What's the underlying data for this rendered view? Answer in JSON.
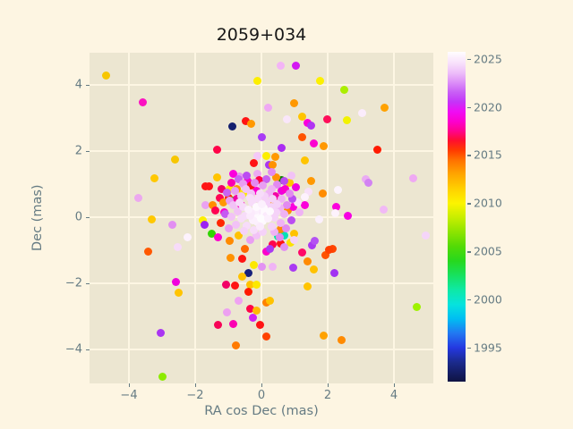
{
  "title": "2059+034",
  "colors": {
    "figure_bg": "#fdf5e2",
    "axes_bg": "#ece6d1",
    "grid": "#fdf6e3",
    "text": "#657b83",
    "title_text": "#181818",
    "tick_mark": "#657b83"
  },
  "chart_data": {
    "type": "scatter",
    "title": "2059+034",
    "xlabel": "RA cos Dec (mas)",
    "ylabel": "Dec (mas)",
    "xlim": [
      -5.19,
      5.19
    ],
    "ylim": [
      -5.03,
      4.97
    ],
    "grid": true,
    "x_ticks": [
      {
        "value": -4,
        "label": "−4"
      },
      {
        "value": -2,
        "label": "−2"
      },
      {
        "value": 0,
        "label": "0"
      },
      {
        "value": 2,
        "label": "2"
      },
      {
        "value": 4,
        "label": "4"
      }
    ],
    "y_ticks": [
      {
        "value": 4,
        "label": "4"
      },
      {
        "value": 2,
        "label": "2"
      },
      {
        "value": 0,
        "label": "0"
      },
      {
        "value": -2,
        "label": "−2"
      },
      {
        "value": -4,
        "label": "−4"
      }
    ],
    "colorbar": {
      "label": "",
      "vmin": 1991.5,
      "vmax": 2025.7,
      "ticks": [
        {
          "value": 2025,
          "label": "2025"
        },
        {
          "value": 2020,
          "label": "2020"
        },
        {
          "value": 2015,
          "label": "2015"
        },
        {
          "value": 2010,
          "label": "2010"
        },
        {
          "value": 2005,
          "label": "2005"
        },
        {
          "value": 2000,
          "label": "2000"
        },
        {
          "value": 1995,
          "label": "1995"
        }
      ],
      "gradient_stops": [
        {
          "v": 1991.5,
          "c": "#0f1342"
        },
        {
          "v": 1993.5,
          "c": "#1b2a8c"
        },
        {
          "v": 1995.0,
          "c": "#2438e0"
        },
        {
          "v": 1996.5,
          "c": "#2277f2"
        },
        {
          "v": 1998.0,
          "c": "#00bdf2"
        },
        {
          "v": 1999.5,
          "c": "#06e3de"
        },
        {
          "v": 2001.0,
          "c": "#0ee9a6"
        },
        {
          "v": 2002.5,
          "c": "#17e160"
        },
        {
          "v": 2004.0,
          "c": "#26d81e"
        },
        {
          "v": 2005.5,
          "c": "#52da06"
        },
        {
          "v": 2007.0,
          "c": "#8ce400"
        },
        {
          "v": 2008.5,
          "c": "#c6ee00"
        },
        {
          "v": 2010.0,
          "c": "#fcf400"
        },
        {
          "v": 2011.5,
          "c": "#ffd000"
        },
        {
          "v": 2013.0,
          "c": "#ffa600"
        },
        {
          "v": 2014.5,
          "c": "#ff7000"
        },
        {
          "v": 2015.5,
          "c": "#ff3a00"
        },
        {
          "v": 2016.5,
          "c": "#ff0f2e"
        },
        {
          "v": 2017.5,
          "c": "#ff038e"
        },
        {
          "v": 2018.5,
          "c": "#fc00cf"
        },
        {
          "v": 2019.5,
          "c": "#ef0cf4"
        },
        {
          "v": 2020.5,
          "c": "#c434f8"
        },
        {
          "v": 2021.5,
          "c": "#c85ef6"
        },
        {
          "v": 2022.5,
          "c": "#dc8ef8"
        },
        {
          "v": 2023.5,
          "c": "#edbdf9"
        },
        {
          "v": 2024.5,
          "c": "#f8e0fb"
        },
        {
          "v": 2025.7,
          "c": "#fffdfe"
        }
      ]
    },
    "points": [
      [
        -4.68,
        4.27,
        "#f7c600"
      ],
      [
        -3.59,
        3.46,
        "#fb12c1"
      ],
      [
        -2.62,
        1.73,
        "#f7c600"
      ],
      [
        0.57,
        4.59,
        "#f3b4f6"
      ],
      [
        1.03,
        4.59,
        "#d319f2"
      ],
      [
        -0.11,
        4.11,
        "#fcee00"
      ],
      [
        0.19,
        3.32,
        "#efa9f3"
      ],
      [
        1.0,
        3.43,
        "#ff9800"
      ],
      [
        -0.89,
        2.73,
        "#131f6e"
      ],
      [
        -0.46,
        2.89,
        "#ff1414"
      ],
      [
        -0.3,
        2.81,
        "#ff9800"
      ],
      [
        1.22,
        3.05,
        "#ffc400"
      ],
      [
        0.76,
        2.95,
        "#f9e6fa"
      ],
      [
        1.38,
        2.84,
        "#fb00dd"
      ],
      [
        1.49,
        2.76,
        "#b134f2"
      ],
      [
        0.0,
        2.41,
        "#a93cf5"
      ],
      [
        1.24,
        2.41,
        "#ff5400"
      ],
      [
        1.57,
        2.22,
        "#fb00d0"
      ],
      [
        -1.35,
        2.05,
        "#ff0448"
      ],
      [
        0.62,
        2.08,
        "#ab2cf2"
      ],
      [
        -0.11,
        1.84,
        "#f4c9f7"
      ],
      [
        0.14,
        1.86,
        "#fcee00"
      ],
      [
        0.41,
        1.81,
        "#ff9800"
      ],
      [
        1.3,
        1.7,
        "#ffc400"
      ],
      [
        1.78,
        4.11,
        "#fcf000"
      ],
      [
        2.49,
        3.86,
        "#abee00"
      ],
      [
        3.73,
        3.32,
        "#ffa200"
      ],
      [
        3.03,
        3.14,
        "#fbecfc"
      ],
      [
        2.0,
        2.95,
        "#ff0f5a"
      ],
      [
        2.59,
        2.92,
        "#f2f200"
      ],
      [
        1.89,
        2.14,
        "#ff9800"
      ],
      [
        3.49,
        2.03,
        "#ff1a00"
      ],
      [
        -3.22,
        1.16,
        "#ffc800"
      ],
      [
        -3.73,
        0.59,
        "#eca8ef"
      ],
      [
        -1.7,
        0.92,
        "#ff1414"
      ],
      [
        -1.68,
        0.35,
        "#eaa2f1"
      ],
      [
        -3.3,
        -0.08,
        "#ffc800"
      ],
      [
        -2.7,
        -0.22,
        "#e28ef2"
      ],
      [
        -1.76,
        -0.11,
        "#fcee00"
      ],
      [
        -1.73,
        -0.24,
        "#9c22f2"
      ],
      [
        -2.24,
        -0.62,
        "#fdf2fd"
      ],
      [
        -3.41,
        -1.03,
        "#ff5800"
      ],
      [
        -2.54,
        -0.92,
        "#f7dbf9"
      ],
      [
        -2.57,
        -1.95,
        "#f000dd"
      ],
      [
        -2.51,
        -2.3,
        "#ffc400"
      ],
      [
        -3.05,
        -3.49,
        "#aa35f2"
      ],
      [
        -3.0,
        -4.84,
        "#8deb00"
      ],
      [
        3.16,
        1.14,
        "#eaabf3"
      ],
      [
        3.24,
        1.03,
        "#d282f2"
      ],
      [
        4.59,
        1.16,
        "#efa9f3"
      ],
      [
        2.32,
        0.81,
        "#fdf4fd"
      ],
      [
        1.84,
        0.7,
        "#ff8c00"
      ],
      [
        2.27,
        0.32,
        "#fb00dd"
      ],
      [
        2.24,
        0.11,
        "#fdf2fc"
      ],
      [
        2.62,
        0.05,
        "#f600e2"
      ],
      [
        3.68,
        0.24,
        "#f1b9f6"
      ],
      [
        4.95,
        -0.57,
        "#f5d5f9"
      ],
      [
        2.16,
        -0.97,
        "#ff4600"
      ],
      [
        1.92,
        -1.14,
        "#ff5200"
      ],
      [
        2.19,
        -1.68,
        "#a232f2"
      ],
      [
        4.7,
        -2.73,
        "#9ff200"
      ],
      [
        1.89,
        -3.59,
        "#ffa200"
      ],
      [
        2.41,
        -3.73,
        "#ff8a00"
      ],
      [
        0.7,
        -0.57,
        "#06dfb6"
      ],
      [
        -1.08,
        -2.05,
        "#f20066"
      ],
      [
        -0.81,
        -2.08,
        "#ff1414"
      ],
      [
        -0.35,
        -2.03,
        "#ffc200"
      ],
      [
        -0.38,
        -2.27,
        "#ff1a00"
      ],
      [
        -0.14,
        -2.03,
        "#fce800"
      ],
      [
        1.38,
        -2.11,
        "#ffc400"
      ],
      [
        -0.7,
        -2.54,
        "#efa2f2"
      ],
      [
        0.14,
        -2.59,
        "#ff8200"
      ],
      [
        0.27,
        -2.54,
        "#ffc200"
      ],
      [
        -0.35,
        -2.78,
        "#ff0448"
      ],
      [
        -0.14,
        -2.84,
        "#ffba00"
      ],
      [
        -1.05,
        -2.89,
        "#eda0f1"
      ],
      [
        -0.27,
        -3.05,
        "#d122f2"
      ],
      [
        -1.32,
        -3.27,
        "#f70457"
      ],
      [
        -0.84,
        -3.24,
        "#fb00b2"
      ],
      [
        -0.05,
        -3.27,
        "#ff1414"
      ],
      [
        0.16,
        -3.62,
        "#ff4200"
      ],
      [
        -0.78,
        -3.89,
        "#ff7a00"
      ],
      [
        1.54,
        -0.86,
        "#aa3af2"
      ],
      [
        2.03,
        -1.0,
        "#ff3e00"
      ],
      [
        1.22,
        -1.08,
        "#ff0868"
      ],
      [
        0.97,
        -1.54,
        "#aa3af2"
      ],
      [
        1.38,
        -1.35,
        "#ff8a00"
      ],
      [
        1.57,
        -1.59,
        "#ffc200"
      ],
      [
        -0.24,
        1.62,
        "#ff1414"
      ],
      [
        0.22,
        1.59,
        "#aa35f2"
      ],
      [
        0.35,
        1.57,
        "#ff9200"
      ],
      [
        -0.65,
        1.22,
        "#e595f2"
      ],
      [
        -0.41,
        1.08,
        "#fb00cc"
      ],
      [
        -0.11,
        1.3,
        "#ecaaf3"
      ],
      [
        -0.95,
        0.84,
        "#fce800"
      ],
      [
        -0.73,
        0.84,
        "#ff9800"
      ],
      [
        -1.0,
        0.57,
        "#ff2600"
      ],
      [
        -0.86,
        0.49,
        "#35d313"
      ],
      [
        -1.27,
        0.57,
        "#ff0452"
      ],
      [
        -1.46,
        0.35,
        "#ff8e00"
      ],
      [
        -0.38,
        0.81,
        "#f2c3f6"
      ],
      [
        -0.19,
        0.97,
        "#f4cbf7"
      ],
      [
        -1.59,
        0.92,
        "#ff1414"
      ],
      [
        -1.49,
        -0.49,
        "#31d400"
      ],
      [
        0.49,
        -0.59,
        "#06e9a4"
      ],
      [
        0.62,
        1.11,
        "#0c8004"
      ],
      [
        1.51,
        1.08,
        "#ff9800"
      ],
      [
        0.57,
        -0.38,
        "#ff8a00"
      ],
      [
        1.0,
        -0.49,
        "#ffc200"
      ],
      [
        0.89,
        -0.78,
        "#fce200"
      ],
      [
        0.59,
        -0.81,
        "#ff1414"
      ],
      [
        0.35,
        -0.84,
        "#ff044c"
      ],
      [
        0.16,
        -1.05,
        "#fb00cc"
      ],
      [
        -0.38,
        -1.68,
        "#16217c"
      ],
      [
        1.43,
        0.76,
        "#f8e0f9"
      ],
      [
        1.73,
        -0.08,
        "#fbf0fc"
      ],
      [
        1.62,
        -0.73,
        "#b452f2"
      ],
      [
        1.32,
        0.35,
        "#fb00da"
      ],
      [
        -1.11,
        0.14,
        "#fb00cc"
      ],
      [
        -1.22,
        -0.19,
        "#ff2600"
      ],
      [
        -0.97,
        -0.73,
        "#ff8a00"
      ],
      [
        -0.92,
        -1.22,
        "#ff9200"
      ],
      [
        -0.59,
        -1.27,
        "#ff1414"
      ],
      [
        -0.24,
        -1.46,
        "#fce800"
      ],
      [
        0.0,
        -1.51,
        "#e292f2"
      ],
      [
        0.35,
        -1.49,
        "#f0b4f5"
      ],
      [
        -0.59,
        -1.81,
        "#ffc200"
      ],
      [
        -0.55,
        0.7,
        "#fce800"
      ],
      [
        0.3,
        0.42,
        "#ff9800"
      ],
      [
        -0.7,
        -0.55,
        "#ffc200"
      ],
      [
        0.8,
        0.2,
        "#ff8a00"
      ],
      [
        -0.32,
        0.95,
        "#ff1414"
      ],
      [
        0.95,
        0.3,
        "#fb00dd"
      ],
      [
        -1.15,
        0.45,
        "#ff9800"
      ],
      [
        0.85,
        1.05,
        "#ffc400"
      ],
      [
        -0.08,
        1.12,
        "#ff0448"
      ],
      [
        0.45,
        1.2,
        "#ff9200"
      ],
      [
        -1.2,
        0.85,
        "#f20066"
      ],
      [
        1.1,
        0.45,
        "#f8e0f9"
      ],
      [
        1.15,
        0.15,
        "#efb2f4"
      ],
      [
        -1.3,
        -0.6,
        "#fb00cc"
      ],
      [
        0.25,
        -0.95,
        "#aa3af2"
      ],
      [
        -0.5,
        -0.95,
        "#ff6a00"
      ],
      [
        0.7,
        -0.9,
        "#e292f2"
      ],
      [
        1.0,
        -0.7,
        "#f5d2f8"
      ],
      [
        -1.35,
        1.2,
        "#ffc400"
      ],
      [
        0.3,
        1.35,
        "#e28af0"
      ],
      [
        -0.85,
        1.3,
        "#fb00dd"
      ],
      [
        0.9,
        1.25,
        "#f2c2f6"
      ],
      [
        1.3,
        0.6,
        "#fdf2fd"
      ],
      [
        -1.4,
        0.2,
        "#ff0452"
      ],
      [
        -0.6,
        0.35,
        "#fb00cc"
      ],
      [
        0.42,
        0.62,
        "#f200a6"
      ],
      [
        -0.15,
        0.8,
        "#fb00cc"
      ],
      [
        0.6,
        0.8,
        "#f000dd"
      ],
      [
        -0.75,
        0.55,
        "#f200a6"
      ],
      [
        0.72,
        0.85,
        "#fb00cc"
      ],
      [
        1.05,
        0.9,
        "#f000dd"
      ],
      [
        -0.9,
        1.05,
        "#fb00b2"
      ],
      [
        -1.05,
        0.75,
        "#c864f2"
      ],
      [
        0.92,
        0.55,
        "#bb4cf2"
      ],
      [
        -0.7,
        1.15,
        "#c864f2"
      ],
      [
        0.68,
        1.1,
        "#bb4cf2"
      ],
      [
        -1.1,
        0.1,
        "#c55af2"
      ],
      [
        0.9,
        -0.1,
        "#bb4cf2"
      ],
      [
        0.15,
        1.15,
        "#c864f2"
      ],
      [
        -0.45,
        1.25,
        "#bb4cf2"
      ],
      [
        -0.95,
        0.5,
        "#e99ef2"
      ],
      [
        0.78,
        0.35,
        "#e28af0"
      ],
      [
        -0.55,
        1.0,
        "#e99ef2"
      ],
      [
        0.48,
        0.98,
        "#e28af0"
      ],
      [
        -1.0,
        -0.35,
        "#e99ef2"
      ],
      [
        0.75,
        -0.35,
        "#e28af0"
      ],
      [
        -0.35,
        -0.7,
        "#e99ef2"
      ],
      [
        0.55,
        -0.6,
        "#e28af0"
      ],
      [
        -0.8,
        0.8,
        "#e99ef2"
      ],
      [
        0.85,
        0.72,
        "#e28af0"
      ],
      [
        0.05,
        0.95,
        "#e99ef2"
      ],
      [
        -0.2,
        1.05,
        "#e28af0"
      ],
      [
        -0.72,
        0.18,
        "#f2c2f6"
      ],
      [
        0.55,
        0.28,
        "#efb2f4"
      ],
      [
        -0.3,
        0.72,
        "#f2c2f6"
      ],
      [
        0.22,
        0.72,
        "#efb2f4"
      ],
      [
        -0.78,
        -0.22,
        "#f2c2f6"
      ],
      [
        0.58,
        -0.18,
        "#efb2f4"
      ],
      [
        -0.15,
        -0.55,
        "#f2c2f6"
      ],
      [
        0.4,
        -0.45,
        "#efb2f4"
      ],
      [
        -0.62,
        0.62,
        "#f2c2f6"
      ],
      [
        0.62,
        0.55,
        "#efb2f4"
      ],
      [
        -0.85,
        0.35,
        "#f2c2f6"
      ],
      [
        0.3,
        0.85,
        "#efb2f4"
      ],
      [
        -0.48,
        0.85,
        "#f2c2f6"
      ],
      [
        0.7,
        0.08,
        "#efb2f4"
      ],
      [
        -0.9,
        0.02,
        "#f2c2f6"
      ],
      [
        -0.5,
        0.05,
        "#f7dcf9"
      ],
      [
        0.32,
        0.3,
        "#f5d2f8"
      ],
      [
        -0.28,
        0.45,
        "#f7dcf9"
      ],
      [
        0.15,
        0.45,
        "#f5d2f8"
      ],
      [
        -0.55,
        0.3,
        "#f7dcf9"
      ],
      [
        0.38,
        -0.02,
        "#f5d2f8"
      ],
      [
        -0.45,
        -0.25,
        "#f7dcf9"
      ],
      [
        0.3,
        -0.3,
        "#f5d2f8"
      ],
      [
        -0.1,
        0.55,
        "#f7dcf9"
      ],
      [
        0.05,
        -0.45,
        "#f5d2f8"
      ],
      [
        -0.6,
        -0.05,
        "#f7dcf9"
      ],
      [
        0.45,
        0.15,
        "#f5d2f8"
      ],
      [
        -0.22,
        -0.4,
        "#f7dcf9"
      ],
      [
        0.1,
        0.62,
        "#f5d2f8"
      ],
      [
        -0.35,
        0.58,
        "#f7dcf9"
      ],
      [
        0.48,
        0.4,
        "#f5d2f8"
      ],
      [
        -0.65,
        0.45,
        "#f7dcf9"
      ],
      [
        0.35,
        0.55,
        "#f5d2f8"
      ],
      [
        -0.05,
        0.72,
        "#f7dcf9"
      ],
      [
        -0.52,
        -0.42,
        "#f5d2f8"
      ],
      [
        -0.1,
        0.1,
        "#fef9fe"
      ],
      [
        0.02,
        0.02,
        "#fcf0fd"
      ],
      [
        -0.22,
        0.0,
        "#fef9fe"
      ],
      [
        -0.05,
        0.22,
        "#fbeafc"
      ],
      [
        0.1,
        0.14,
        "#fef9fe"
      ],
      [
        -0.18,
        0.2,
        "#fcf0fd"
      ],
      [
        -0.3,
        0.12,
        "#fbeafc"
      ],
      [
        0.05,
        -0.12,
        "#fef9fe"
      ],
      [
        -0.12,
        -0.15,
        "#fcf0fd"
      ],
      [
        0.16,
        0.05,
        "#fbeafc"
      ],
      [
        -0.02,
        -0.03,
        "#fefcfe"
      ],
      [
        -0.25,
        -0.1,
        "#fcf0fd"
      ],
      [
        0.08,
        0.28,
        "#fef9fe"
      ],
      [
        -0.35,
        0.05,
        "#fbeafc"
      ],
      [
        0.2,
        -0.05,
        "#fcf0fd"
      ],
      [
        -0.15,
        0.32,
        "#fef9fe"
      ],
      [
        0.0,
        0.4,
        "#fcf0fd"
      ],
      [
        -0.05,
        -0.28,
        "#fbeafc"
      ],
      [
        0.25,
        0.18,
        "#fef9fe"
      ],
      [
        -0.4,
        0.22,
        "#fcf0fd"
      ]
    ]
  }
}
